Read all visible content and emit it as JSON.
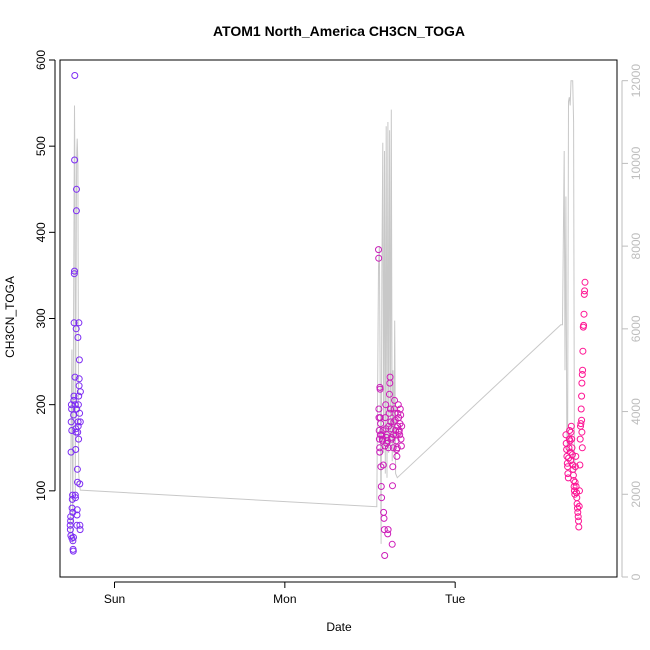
{
  "chart_data": {
    "type": "scatter",
    "title": "ATOM1 North_America CH3CN_TOGA",
    "xlabel": "Date",
    "ylabel": "CH3CN_TOGA",
    "x_ticks": [
      "Sun",
      "Mon",
      "Tue"
    ],
    "x_tick_days": [
      1,
      2,
      3
    ],
    "xlim": [
      0.68,
      3.95
    ],
    "ylim": [
      0,
      600
    ],
    "y_ticks": [
      100,
      200,
      300,
      400,
      500,
      600
    ],
    "y2lim": [
      0,
      12500
    ],
    "y2_ticks": [
      0,
      2000,
      4000,
      6000,
      8000,
      10000,
      12000
    ],
    "grid": false,
    "colors": {
      "low": "#7B2CF5",
      "high": "#FF1493",
      "right_axis": "#bdbdbd",
      "line": "#c8c8c8"
    },
    "scatter": [
      {
        "x": 0.74,
        "y": 60
      },
      {
        "x": 0.741,
        "y": 55
      },
      {
        "x": 0.742,
        "y": 65
      },
      {
        "x": 0.743,
        "y": 70
      },
      {
        "x": 0.744,
        "y": 48
      },
      {
        "x": 0.745,
        "y": 145
      },
      {
        "x": 0.746,
        "y": 180
      },
      {
        "x": 0.747,
        "y": 200
      },
      {
        "x": 0.748,
        "y": 195
      },
      {
        "x": 0.749,
        "y": 170
      },
      {
        "x": 0.75,
        "y": 45
      },
      {
        "x": 0.751,
        "y": 80
      },
      {
        "x": 0.752,
        "y": 90
      },
      {
        "x": 0.754,
        "y": 95
      },
      {
        "x": 0.755,
        "y": 75
      },
      {
        "x": 0.756,
        "y": 42
      },
      {
        "x": 0.757,
        "y": 32
      },
      {
        "x": 0.758,
        "y": 30
      },
      {
        "x": 0.759,
        "y": 46
      },
      {
        "x": 0.76,
        "y": 188
      },
      {
        "x": 0.761,
        "y": 205
      },
      {
        "x": 0.762,
        "y": 210
      },
      {
        "x": 0.763,
        "y": 295
      },
      {
        "x": 0.764,
        "y": 352
      },
      {
        "x": 0.765,
        "y": 355
      },
      {
        "x": 0.766,
        "y": 484
      },
      {
        "x": 0.767,
        "y": 582
      },
      {
        "x": 0.768,
        "y": 232
      },
      {
        "x": 0.769,
        "y": 200
      },
      {
        "x": 0.77,
        "y": 95
      },
      {
        "x": 0.771,
        "y": 92
      },
      {
        "x": 0.772,
        "y": 148
      },
      {
        "x": 0.773,
        "y": 172
      },
      {
        "x": 0.774,
        "y": 168
      },
      {
        "x": 0.775,
        "y": 288
      },
      {
        "x": 0.776,
        "y": 425
      },
      {
        "x": 0.777,
        "y": 450
      },
      {
        "x": 0.778,
        "y": 195
      },
      {
        "x": 0.779,
        "y": 60
      },
      {
        "x": 0.78,
        "y": 72
      },
      {
        "x": 0.781,
        "y": 78
      },
      {
        "x": 0.782,
        "y": 125
      },
      {
        "x": 0.783,
        "y": 110
      },
      {
        "x": 0.784,
        "y": 168
      },
      {
        "x": 0.785,
        "y": 278
      },
      {
        "x": 0.786,
        "y": 180
      },
      {
        "x": 0.787,
        "y": 175
      },
      {
        "x": 0.788,
        "y": 200
      },
      {
        "x": 0.789,
        "y": 160
      },
      {
        "x": 0.79,
        "y": 210
      },
      {
        "x": 0.791,
        "y": 295
      },
      {
        "x": 0.792,
        "y": 222
      },
      {
        "x": 0.793,
        "y": 230
      },
      {
        "x": 0.794,
        "y": 252
      },
      {
        "x": 0.795,
        "y": 190
      },
      {
        "x": 0.796,
        "y": 108
      },
      {
        "x": 0.797,
        "y": 60
      },
      {
        "x": 0.798,
        "y": 55
      },
      {
        "x": 0.799,
        "y": 180
      },
      {
        "x": 0.8,
        "y": 215
      },
      {
        "x": 2.55,
        "y": 380
      },
      {
        "x": 2.551,
        "y": 370
      },
      {
        "x": 2.552,
        "y": 195
      },
      {
        "x": 2.553,
        "y": 185
      },
      {
        "x": 2.554,
        "y": 170
      },
      {
        "x": 2.555,
        "y": 160
      },
      {
        "x": 2.556,
        "y": 150
      },
      {
        "x": 2.557,
        "y": 145
      },
      {
        "x": 2.558,
        "y": 220
      },
      {
        "x": 2.559,
        "y": 218
      },
      {
        "x": 2.56,
        "y": 185
      },
      {
        "x": 2.561,
        "y": 165
      },
      {
        "x": 2.562,
        "y": 178
      },
      {
        "x": 2.564,
        "y": 128
      },
      {
        "x": 2.566,
        "y": 105
      },
      {
        "x": 2.568,
        "y": 92
      },
      {
        "x": 2.57,
        "y": 165
      },
      {
        "x": 2.572,
        "y": 160
      },
      {
        "x": 2.574,
        "y": 158
      },
      {
        "x": 2.576,
        "y": 170
      },
      {
        "x": 2.578,
        "y": 130
      },
      {
        "x": 2.58,
        "y": 75
      },
      {
        "x": 2.582,
        "y": 68
      },
      {
        "x": 2.584,
        "y": 55
      },
      {
        "x": 2.586,
        "y": 25
      },
      {
        "x": 2.588,
        "y": 152
      },
      {
        "x": 2.59,
        "y": 185
      },
      {
        "x": 2.592,
        "y": 200
      },
      {
        "x": 2.594,
        "y": 172
      },
      {
        "x": 2.596,
        "y": 162
      },
      {
        "x": 2.598,
        "y": 155
      },
      {
        "x": 2.6,
        "y": 165
      },
      {
        "x": 2.602,
        "y": 158
      },
      {
        "x": 2.604,
        "y": 50
      },
      {
        "x": 2.606,
        "y": 55
      },
      {
        "x": 2.608,
        "y": 150
      },
      {
        "x": 2.61,
        "y": 175
      },
      {
        "x": 2.612,
        "y": 190
      },
      {
        "x": 2.614,
        "y": 212
      },
      {
        "x": 2.616,
        "y": 225
      },
      {
        "x": 2.618,
        "y": 232
      },
      {
        "x": 2.62,
        "y": 195
      },
      {
        "x": 2.622,
        "y": 180
      },
      {
        "x": 2.624,
        "y": 172
      },
      {
        "x": 2.626,
        "y": 162
      },
      {
        "x": 2.628,
        "y": 160
      },
      {
        "x": 2.63,
        "y": 38
      },
      {
        "x": 2.632,
        "y": 106
      },
      {
        "x": 2.634,
        "y": 128
      },
      {
        "x": 2.636,
        "y": 150
      },
      {
        "x": 2.638,
        "y": 165
      },
      {
        "x": 2.64,
        "y": 180
      },
      {
        "x": 2.642,
        "y": 195
      },
      {
        "x": 2.644,
        "y": 205
      },
      {
        "x": 2.646,
        "y": 190
      },
      {
        "x": 2.648,
        "y": 182
      },
      {
        "x": 2.65,
        "y": 170
      },
      {
        "x": 2.652,
        "y": 165
      },
      {
        "x": 2.654,
        "y": 158
      },
      {
        "x": 2.656,
        "y": 148
      },
      {
        "x": 2.658,
        "y": 140
      },
      {
        "x": 2.66,
        "y": 150
      },
      {
        "x": 2.662,
        "y": 175
      },
      {
        "x": 2.664,
        "y": 190
      },
      {
        "x": 2.666,
        "y": 200
      },
      {
        "x": 2.668,
        "y": 185
      },
      {
        "x": 2.67,
        "y": 168
      },
      {
        "x": 2.672,
        "y": 170
      },
      {
        "x": 2.674,
        "y": 165
      },
      {
        "x": 2.676,
        "y": 178
      },
      {
        "x": 2.678,
        "y": 195
      },
      {
        "x": 2.68,
        "y": 188
      },
      {
        "x": 2.682,
        "y": 160
      },
      {
        "x": 2.684,
        "y": 152
      },
      {
        "x": 2.686,
        "y": 175
      },
      {
        "x": 3.65,
        "y": 165
      },
      {
        "x": 3.652,
        "y": 155
      },
      {
        "x": 3.654,
        "y": 148
      },
      {
        "x": 3.656,
        "y": 140
      },
      {
        "x": 3.658,
        "y": 132
      },
      {
        "x": 3.66,
        "y": 128
      },
      {
        "x": 3.662,
        "y": 120
      },
      {
        "x": 3.664,
        "y": 115
      },
      {
        "x": 3.666,
        "y": 138
      },
      {
        "x": 3.668,
        "y": 150
      },
      {
        "x": 3.67,
        "y": 160
      },
      {
        "x": 3.672,
        "y": 170
      },
      {
        "x": 3.674,
        "y": 158
      },
      {
        "x": 3.676,
        "y": 145
      },
      {
        "x": 3.678,
        "y": 135
      },
      {
        "x": 3.68,
        "y": 168
      },
      {
        "x": 3.682,
        "y": 175
      },
      {
        "x": 3.684,
        "y": 160
      },
      {
        "x": 3.686,
        "y": 150
      },
      {
        "x": 3.688,
        "y": 142
      },
      {
        "x": 3.69,
        "y": 130
      },
      {
        "x": 3.692,
        "y": 125
      },
      {
        "x": 3.694,
        "y": 118
      },
      {
        "x": 3.696,
        "y": 112
      },
      {
        "x": 3.698,
        "y": 105
      },
      {
        "x": 3.7,
        "y": 100
      },
      {
        "x": 3.702,
        "y": 96
      },
      {
        "x": 3.704,
        "y": 110
      },
      {
        "x": 3.706,
        "y": 128
      },
      {
        "x": 3.708,
        "y": 140
      },
      {
        "x": 3.71,
        "y": 105
      },
      {
        "x": 3.712,
        "y": 98
      },
      {
        "x": 3.714,
        "y": 92
      },
      {
        "x": 3.716,
        "y": 85
      },
      {
        "x": 3.718,
        "y": 80
      },
      {
        "x": 3.72,
        "y": 75
      },
      {
        "x": 3.722,
        "y": 70
      },
      {
        "x": 3.724,
        "y": 65
      },
      {
        "x": 3.726,
        "y": 58
      },
      {
        "x": 3.728,
        "y": 82
      },
      {
        "x": 3.73,
        "y": 100
      },
      {
        "x": 3.732,
        "y": 130
      },
      {
        "x": 3.734,
        "y": 160
      },
      {
        "x": 3.736,
        "y": 175
      },
      {
        "x": 3.738,
        "y": 178
      },
      {
        "x": 3.74,
        "y": 195
      },
      {
        "x": 3.742,
        "y": 210
      },
      {
        "x": 3.744,
        "y": 225
      },
      {
        "x": 3.746,
        "y": 235
      },
      {
        "x": 3.748,
        "y": 240
      },
      {
        "x": 3.75,
        "y": 262
      },
      {
        "x": 3.752,
        "y": 290
      },
      {
        "x": 3.754,
        "y": 292
      },
      {
        "x": 3.756,
        "y": 305
      },
      {
        "x": 3.758,
        "y": 328
      },
      {
        "x": 3.76,
        "y": 332
      },
      {
        "x": 3.762,
        "y": 342
      },
      {
        "x": 3.742,
        "y": 182
      },
      {
        "x": 3.744,
        "y": 168
      },
      {
        "x": 3.746,
        "y": 150
      }
    ],
    "line_y2": [
      {
        "x": 0.74,
        "y2": 1000
      },
      {
        "x": 0.745,
        "y2": 3500
      },
      {
        "x": 0.75,
        "y2": 5500
      },
      {
        "x": 0.755,
        "y2": 800
      },
      {
        "x": 0.76,
        "y2": 6500
      },
      {
        "x": 0.765,
        "y2": 11400
      },
      {
        "x": 0.768,
        "y2": 9500
      },
      {
        "x": 0.77,
        "y2": 2000
      },
      {
        "x": 0.773,
        "y2": 5000
      },
      {
        "x": 0.776,
        "y2": 9000
      },
      {
        "x": 0.778,
        "y2": 10200
      },
      {
        "x": 0.781,
        "y2": 10600
      },
      {
        "x": 0.785,
        "y2": 10000
      },
      {
        "x": 0.79,
        "y2": 2500
      },
      {
        "x": 0.795,
        "y2": 2200
      },
      {
        "x": 0.8,
        "y2": 2100
      },
      {
        "x": 2.54,
        "y2": 1700
      },
      {
        "x": 2.55,
        "y2": 7500
      },
      {
        "x": 2.555,
        "y2": 8000
      },
      {
        "x": 2.56,
        "y2": 4500
      },
      {
        "x": 2.565,
        "y2": 800
      },
      {
        "x": 2.57,
        "y2": 7500
      },
      {
        "x": 2.575,
        "y2": 10500
      },
      {
        "x": 2.58,
        "y2": 3000
      },
      {
        "x": 2.585,
        "y2": 10300
      },
      {
        "x": 2.59,
        "y2": 2500
      },
      {
        "x": 2.595,
        "y2": 10900
      },
      {
        "x": 2.6,
        "y2": 2400
      },
      {
        "x": 2.605,
        "y2": 11000
      },
      {
        "x": 2.61,
        "y2": 3000
      },
      {
        "x": 2.615,
        "y2": 10800
      },
      {
        "x": 2.62,
        "y2": 3200
      },
      {
        "x": 2.625,
        "y2": 11300
      },
      {
        "x": 2.63,
        "y2": 2800
      },
      {
        "x": 2.635,
        "y2": 5000
      },
      {
        "x": 2.64,
        "y2": 3000
      },
      {
        "x": 2.645,
        "y2": 6200
      },
      {
        "x": 2.65,
        "y2": 2500
      },
      {
        "x": 2.66,
        "y2": 2400
      },
      {
        "x": 3.62,
        "y2": 6100
      },
      {
        "x": 3.63,
        "y2": 6100
      },
      {
        "x": 3.64,
        "y2": 10300
      },
      {
        "x": 3.645,
        "y2": 5000
      },
      {
        "x": 3.65,
        "y2": 9200
      },
      {
        "x": 3.655,
        "y2": 3500
      },
      {
        "x": 3.66,
        "y2": 3000
      },
      {
        "x": 3.665,
        "y2": 11500
      },
      {
        "x": 3.67,
        "y2": 11600
      },
      {
        "x": 3.675,
        "y2": 11400
      },
      {
        "x": 3.68,
        "y2": 12000
      },
      {
        "x": 3.685,
        "y2": 12000
      },
      {
        "x": 3.69,
        "y2": 12000
      },
      {
        "x": 3.695,
        "y2": 11000
      },
      {
        "x": 3.7,
        "y2": 3000
      },
      {
        "x": 3.705,
        "y2": 2500
      }
    ]
  }
}
